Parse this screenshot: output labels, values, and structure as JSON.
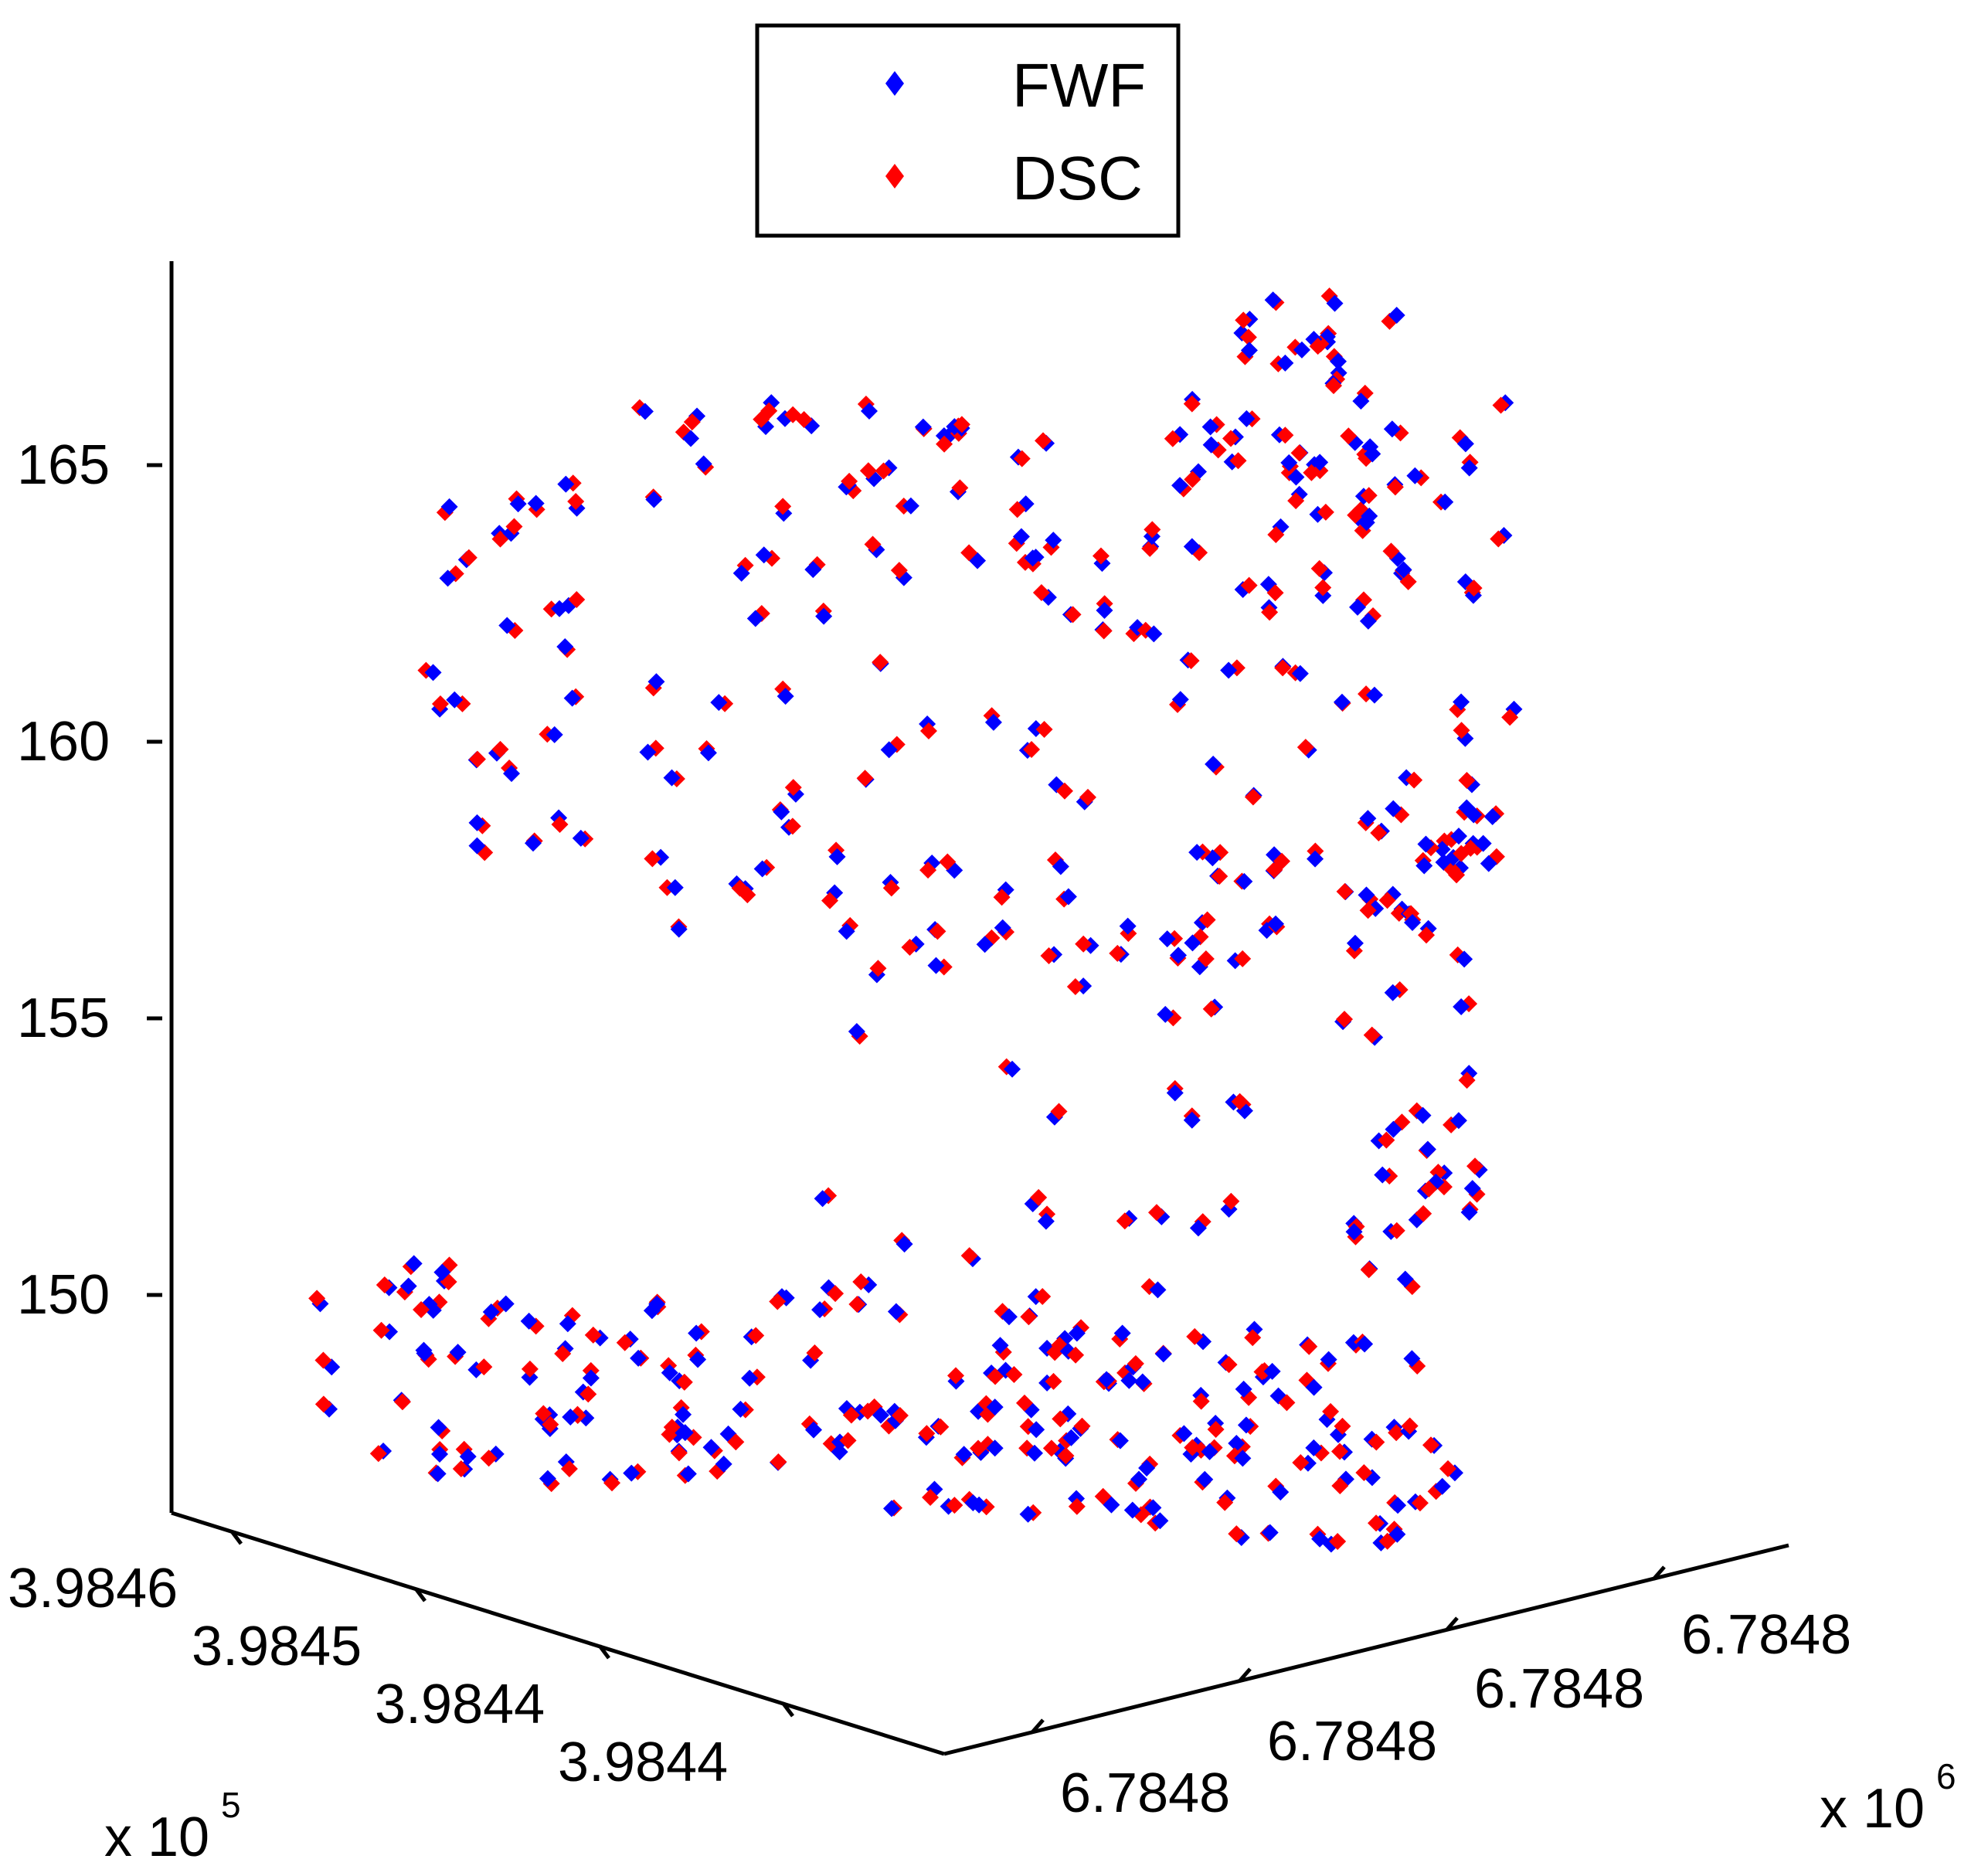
{
  "chart_data": {
    "type": "scatter",
    "projection": "3d",
    "legend": {
      "placement": "top-center",
      "entries": [
        {
          "label": "FWF",
          "color": "#0000ff",
          "marker": "diamond"
        },
        {
          "label": "DSC",
          "color": "#ff0000",
          "marker": "diamond"
        }
      ]
    },
    "z_axis": {
      "ticks": [
        "150",
        "155",
        "160",
        "165"
      ],
      "range": [
        146,
        168
      ]
    },
    "y_axis": {
      "ticks": [
        "3.9846",
        "3.9845",
        "3.9844",
        "3.9844"
      ],
      "multiplier": "x 10",
      "exponent": "5"
    },
    "x_axis": {
      "ticks": [
        "6.7848",
        "6.7848",
        "6.7848",
        "6.7848"
      ],
      "multiplier": "x 10",
      "exponent": "6"
    },
    "grid": false
  }
}
